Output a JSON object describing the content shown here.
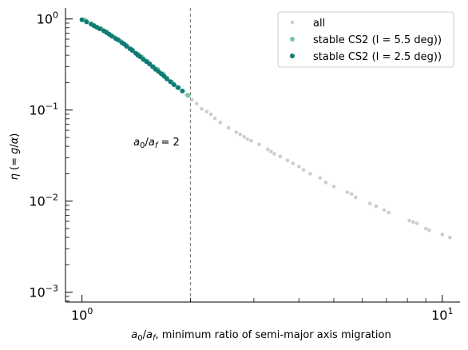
{
  "chart_data": {
    "type": "scatter",
    "xscale": "log",
    "yscale": "log",
    "xlim": [
      0.9,
      11.2
    ],
    "ylim": [
      0.00078,
      1.32
    ],
    "xlabel": "a0/af,  minimum ratio of semi-major axis migration",
    "ylabel": "η (= g/α)",
    "x_ticks": [
      {
        "value": 1,
        "base": "10",
        "exp": "0"
      },
      {
        "value": 10,
        "base": "10",
        "exp": "1"
      }
    ],
    "y_ticks": [
      {
        "value": 1,
        "base": "10",
        "exp": "0"
      },
      {
        "value": 0.1,
        "base": "10",
        "exp": "−1"
      },
      {
        "value": 0.01,
        "base": "10",
        "exp": "−2"
      },
      {
        "value": 0.001,
        "base": "10",
        "exp": "−3"
      }
    ],
    "vline": {
      "x": 2,
      "color": "#808080",
      "style": "dashed"
    },
    "annotation": {
      "text": "a0/af = 2",
      "x": 1.39,
      "y": 0.041
    },
    "legend_position": "upper right",
    "series": [
      {
        "name": "all",
        "color": "#bdbdbd",
        "marker_size": 2.3,
        "points": [
          [
            1.03,
            0.95
          ],
          [
            1.06,
            0.9
          ],
          [
            1.1,
            0.82
          ],
          [
            1.14,
            0.77
          ],
          [
            1.18,
            0.7
          ],
          [
            1.22,
            0.64
          ],
          [
            1.27,
            0.58
          ],
          [
            1.31,
            0.53
          ],
          [
            1.35,
            0.49
          ],
          [
            1.4,
            0.44
          ],
          [
            1.45,
            0.4
          ],
          [
            1.5,
            0.36
          ],
          [
            1.55,
            0.33
          ],
          [
            1.6,
            0.29
          ],
          [
            1.65,
            0.26
          ],
          [
            1.7,
            0.235
          ],
          [
            1.75,
            0.21
          ],
          [
            1.8,
            0.19
          ],
          [
            1.95,
            0.148
          ],
          [
            2.02,
            0.13
          ],
          [
            2.08,
            0.118
          ],
          [
            2.15,
            0.103
          ],
          [
            2.22,
            0.096
          ],
          [
            2.28,
            0.09
          ],
          [
            2.34,
            0.081
          ],
          [
            2.42,
            0.073
          ],
          [
            2.55,
            0.064
          ],
          [
            2.68,
            0.057
          ],
          [
            2.75,
            0.054
          ],
          [
            2.82,
            0.051
          ],
          [
            2.88,
            0.048
          ],
          [
            2.95,
            0.046
          ],
          [
            3.1,
            0.042
          ],
          [
            3.28,
            0.037
          ],
          [
            3.35,
            0.035
          ],
          [
            3.42,
            0.033
          ],
          [
            3.55,
            0.031
          ],
          [
            3.72,
            0.028
          ],
          [
            3.85,
            0.026
          ],
          [
            4.0,
            0.024
          ],
          [
            4.12,
            0.022
          ],
          [
            4.3,
            0.02
          ],
          [
            4.58,
            0.018
          ],
          [
            4.75,
            0.016
          ],
          [
            5.0,
            0.0145
          ],
          [
            5.45,
            0.0125
          ],
          [
            5.6,
            0.012
          ],
          [
            5.75,
            0.011
          ],
          [
            6.3,
            0.0094
          ],
          [
            6.55,
            0.0088
          ],
          [
            6.9,
            0.008
          ],
          [
            7.1,
            0.0075
          ],
          [
            8.1,
            0.0061
          ],
          [
            8.3,
            0.0059
          ],
          [
            8.5,
            0.0057
          ],
          [
            9.0,
            0.005
          ],
          [
            9.2,
            0.0048
          ],
          [
            10.0,
            0.0043
          ],
          [
            10.5,
            0.004
          ]
        ]
      },
      {
        "name": "stable CS2 (I = 5.5 deg))",
        "color": "#7cc4a4",
        "marker_size": 3.0,
        "points": [
          [
            1.02,
            0.97
          ],
          [
            1.08,
            0.85
          ],
          [
            1.13,
            0.78
          ],
          [
            1.17,
            0.72
          ],
          [
            1.23,
            0.63
          ],
          [
            1.28,
            0.57
          ],
          [
            1.33,
            0.51
          ],
          [
            1.38,
            0.46
          ],
          [
            1.43,
            0.41
          ],
          [
            1.47,
            0.38
          ],
          [
            1.52,
            0.34
          ],
          [
            1.58,
            0.3
          ],
          [
            1.62,
            0.28
          ],
          [
            1.68,
            0.25
          ],
          [
            1.72,
            0.225
          ],
          [
            1.78,
            0.2
          ],
          [
            1.84,
            0.178
          ],
          [
            1.97,
            0.145
          ]
        ]
      },
      {
        "name": "stable CS2 (I = 2.5 deg))",
        "color": "#0e7c74",
        "marker_size": 3.0,
        "points": [
          [
            1.0,
            0.98
          ],
          [
            1.03,
            0.93
          ],
          [
            1.06,
            0.88
          ],
          [
            1.08,
            0.84
          ],
          [
            1.1,
            0.81
          ],
          [
            1.12,
            0.78
          ],
          [
            1.15,
            0.74
          ],
          [
            1.17,
            0.71
          ],
          [
            1.19,
            0.68
          ],
          [
            1.21,
            0.65
          ],
          [
            1.24,
            0.61
          ],
          [
            1.26,
            0.59
          ],
          [
            1.29,
            0.55
          ],
          [
            1.31,
            0.53
          ],
          [
            1.33,
            0.5
          ],
          [
            1.36,
            0.47
          ],
          [
            1.38,
            0.45
          ],
          [
            1.41,
            0.42
          ],
          [
            1.43,
            0.4
          ],
          [
            1.45,
            0.385
          ],
          [
            1.48,
            0.36
          ],
          [
            1.51,
            0.34
          ],
          [
            1.54,
            0.32
          ],
          [
            1.57,
            0.3
          ],
          [
            1.6,
            0.28
          ],
          [
            1.63,
            0.265
          ],
          [
            1.66,
            0.25
          ],
          [
            1.69,
            0.235
          ],
          [
            1.72,
            0.22
          ],
          [
            1.76,
            0.205
          ],
          [
            1.8,
            0.19
          ],
          [
            1.85,
            0.176
          ],
          [
            1.9,
            0.162
          ]
        ]
      }
    ]
  }
}
